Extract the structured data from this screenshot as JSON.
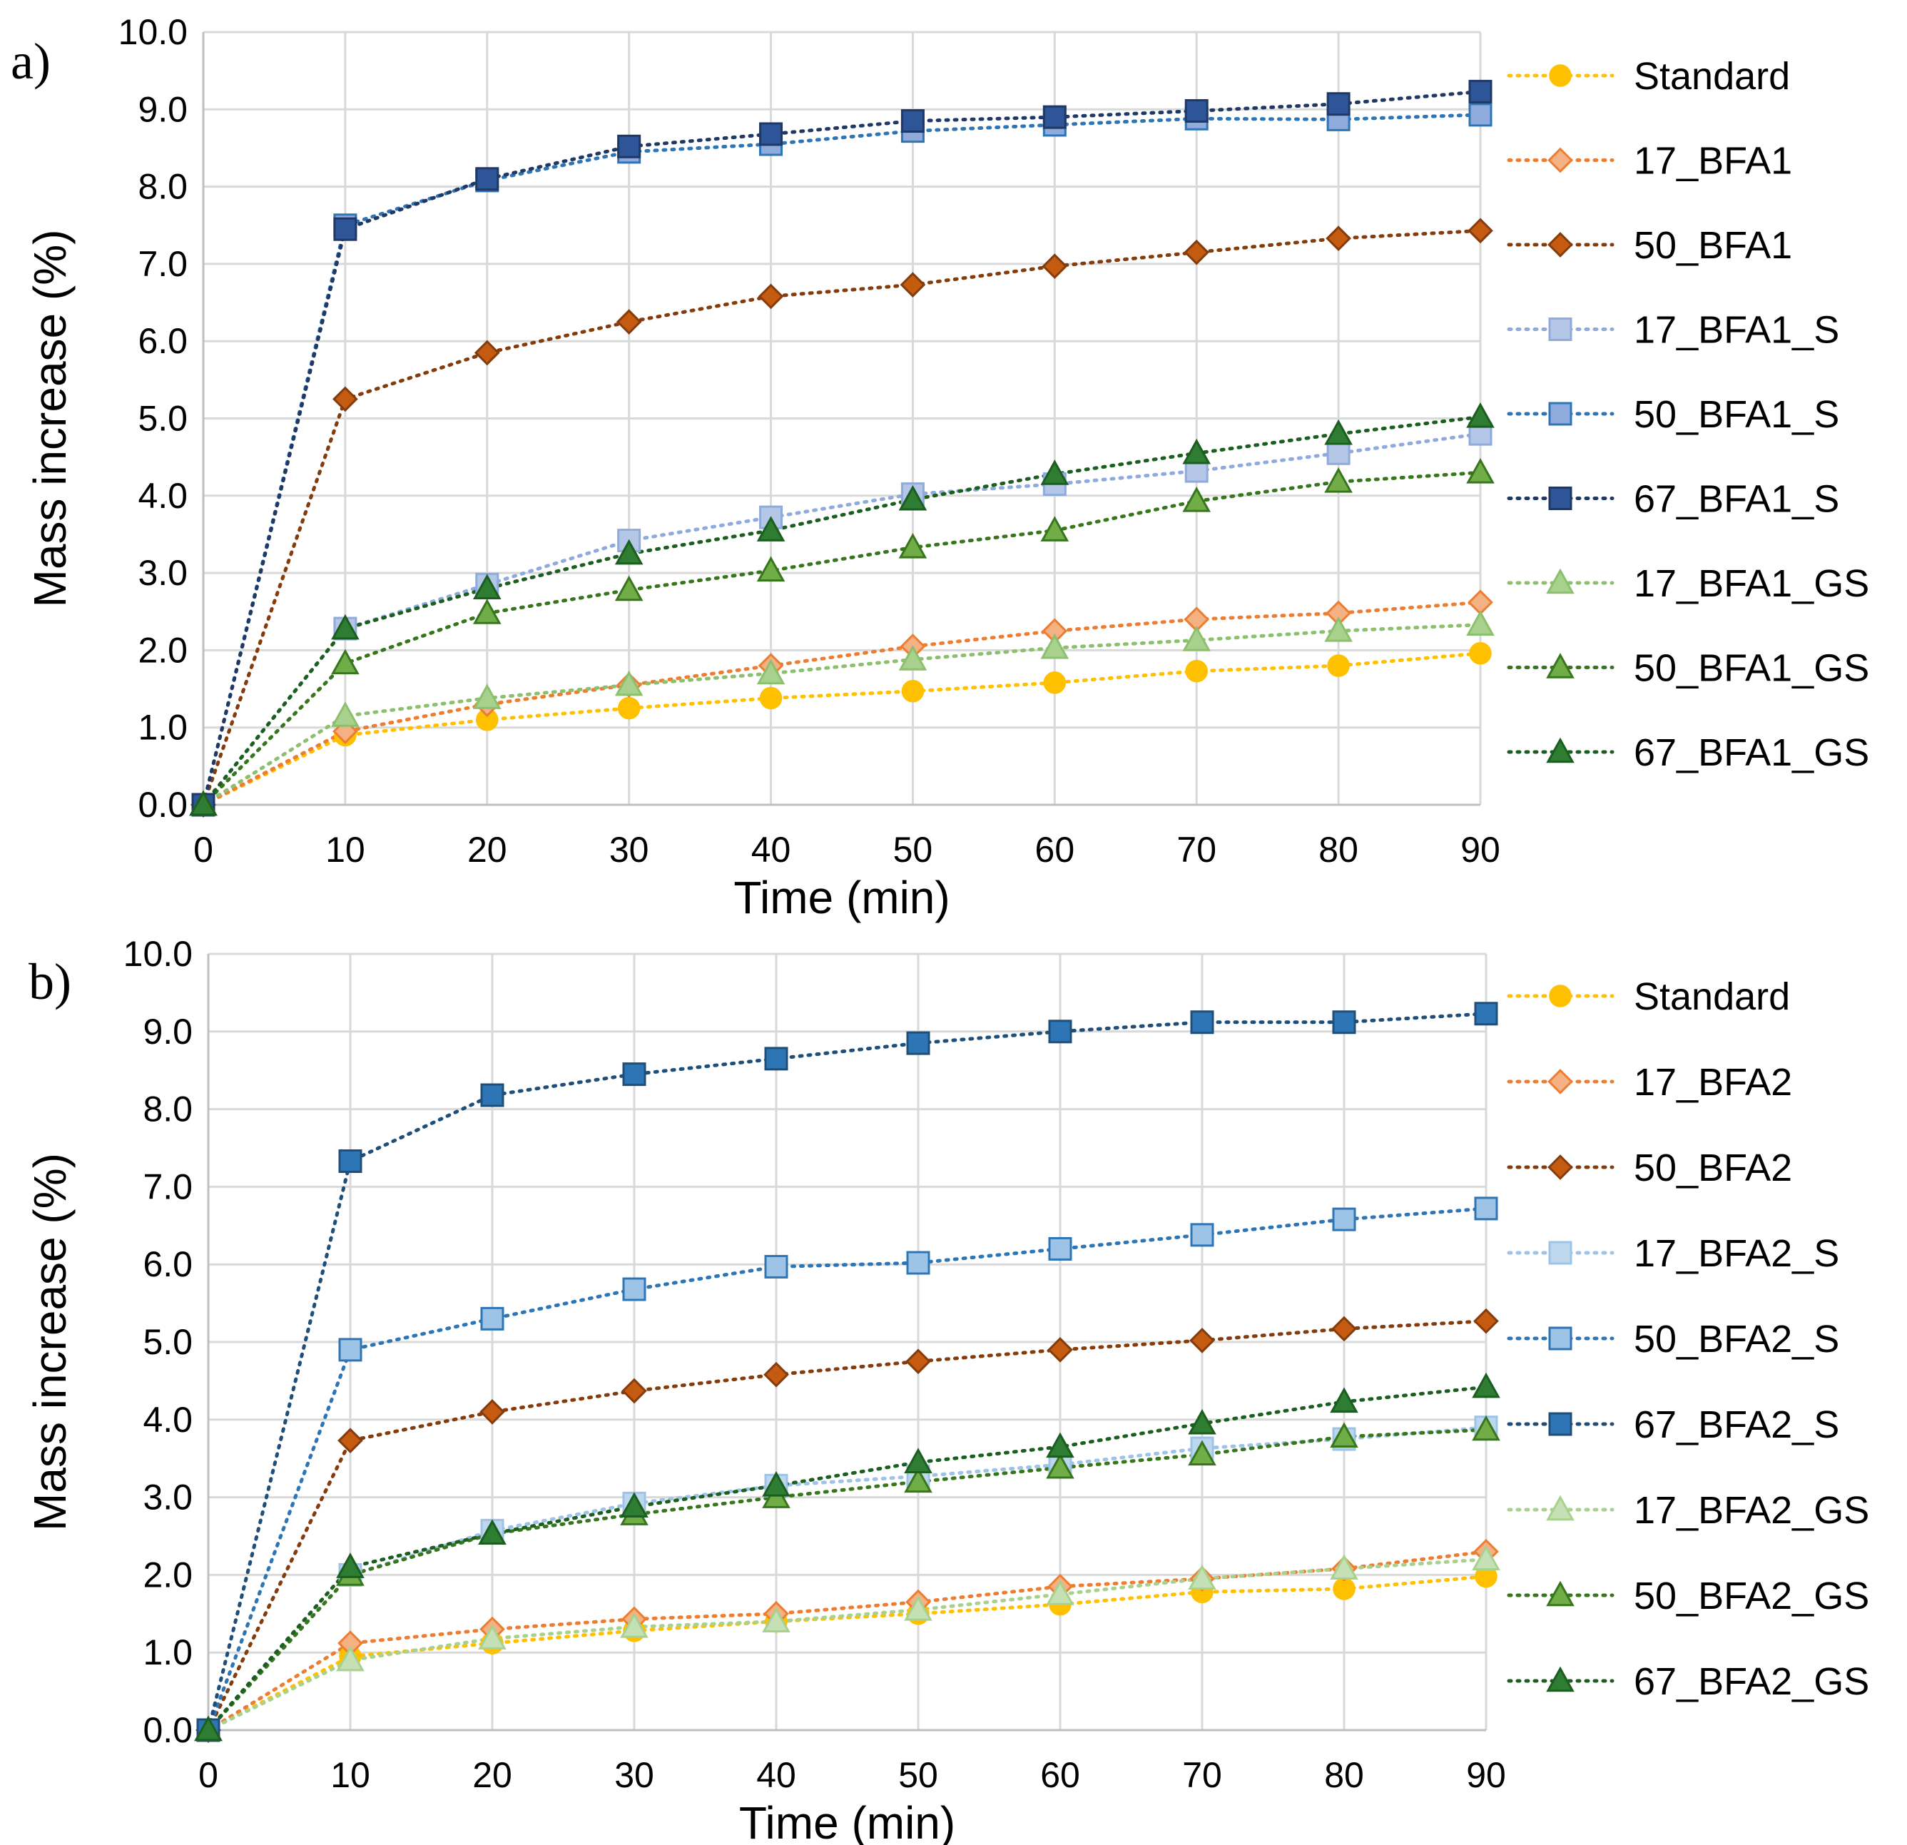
{
  "chart_data": [
    {
      "type": "line",
      "panel": "a)",
      "xlabel": "Time (min)",
      "ylabel": "Mass increase (%)",
      "x": [
        0,
        10,
        20,
        30,
        40,
        50,
        60,
        70,
        80,
        90
      ],
      "xlim": [
        0,
        90
      ],
      "ylim": [
        0,
        10
      ],
      "x_tick_labels": [
        "0",
        "10",
        "20",
        "30",
        "40",
        "50",
        "60",
        "70",
        "80",
        "90"
      ],
      "y_tick_labels": [
        "0.0",
        "1.0",
        "2.0",
        "3.0",
        "4.0",
        "5.0",
        "6.0",
        "7.0",
        "8.0",
        "9.0",
        "10.0"
      ],
      "grid": true,
      "legend_position": "right",
      "series": [
        {
          "name": "Standard",
          "marker": "circle",
          "fill": "#FFC000",
          "stroke": "#FFC000",
          "line_color": "#FFC000",
          "values": [
            0,
            0.9,
            1.1,
            1.25,
            1.38,
            1.47,
            1.58,
            1.73,
            1.8,
            1.96
          ]
        },
        {
          "name": "17_BFA1",
          "marker": "diamond",
          "fill": "#F4B183",
          "stroke": "#ED7D31",
          "line_color": "#ED7D31",
          "values": [
            0,
            0.95,
            1.3,
            1.55,
            1.8,
            2.05,
            2.25,
            2.4,
            2.48,
            2.62
          ]
        },
        {
          "name": "50_BFA1",
          "marker": "diamond",
          "fill": "#C55A11",
          "stroke": "#843C0C",
          "line_color": "#843C0C",
          "values": [
            0,
            5.25,
            5.85,
            6.25,
            6.58,
            6.73,
            6.97,
            7.15,
            7.33,
            7.43
          ]
        },
        {
          "name": "17_BFA1_S",
          "marker": "square",
          "fill": "#B4C7E7",
          "stroke": "#8FAADC",
          "line_color": "#8FAADC",
          "values": [
            0,
            2.28,
            2.85,
            3.42,
            3.72,
            4.02,
            4.15,
            4.32,
            4.55,
            4.8
          ]
        },
        {
          "name": "50_BFA1_S",
          "marker": "square",
          "fill": "#8FAADC",
          "stroke": "#2E75B6",
          "line_color": "#2E75B6",
          "values": [
            0,
            7.5,
            8.08,
            8.45,
            8.55,
            8.72,
            8.8,
            8.88,
            8.87,
            8.93
          ]
        },
        {
          "name": "67_BFA1_S",
          "marker": "square",
          "fill": "#2E5597",
          "stroke": "#1F3864",
          "line_color": "#1F3864",
          "values": [
            0,
            7.45,
            8.1,
            8.52,
            8.68,
            8.85,
            8.9,
            8.98,
            9.07,
            9.23
          ]
        },
        {
          "name": "17_BFA1_GS",
          "marker": "triangle",
          "fill": "#A9D18E",
          "stroke": "#8CC06E",
          "line_color": "#8CC06E",
          "values": [
            0,
            1.15,
            1.38,
            1.55,
            1.7,
            1.88,
            2.03,
            2.13,
            2.25,
            2.33
          ]
        },
        {
          "name": "50_BFA1_GS",
          "marker": "triangle",
          "fill": "#70AD47",
          "stroke": "#38761D",
          "line_color": "#38761D",
          "values": [
            0,
            1.83,
            2.48,
            2.78,
            3.03,
            3.33,
            3.55,
            3.93,
            4.18,
            4.3
          ]
        },
        {
          "name": "67_BFA1_GS",
          "marker": "triangle",
          "fill": "#2E7D32",
          "stroke": "#1B5E20",
          "line_color": "#1B5E20",
          "values": [
            0,
            2.28,
            2.8,
            3.25,
            3.55,
            3.95,
            4.28,
            4.55,
            4.8,
            5.02
          ]
        }
      ]
    },
    {
      "type": "line",
      "panel": "b)",
      "xlabel": "Time (min)",
      "ylabel": "Mass increase (%)",
      "x": [
        0,
        10,
        20,
        30,
        40,
        50,
        60,
        70,
        80,
        90
      ],
      "xlim": [
        0,
        90
      ],
      "ylim": [
        0,
        10
      ],
      "x_tick_labels": [
        "0",
        "10",
        "20",
        "30",
        "40",
        "50",
        "60",
        "70",
        "80",
        "90"
      ],
      "y_tick_labels": [
        "0.0",
        "1.0",
        "2.0",
        "3.0",
        "4.0",
        "5.0",
        "6.0",
        "7.0",
        "8.0",
        "9.0",
        "10.0"
      ],
      "grid": true,
      "legend_position": "right",
      "series": [
        {
          "name": "Standard",
          "marker": "circle",
          "fill": "#FFC000",
          "stroke": "#FFC000",
          "line_color": "#FFC000",
          "values": [
            0,
            0.95,
            1.12,
            1.28,
            1.4,
            1.5,
            1.62,
            1.78,
            1.82,
            1.98
          ]
        },
        {
          "name": "17_BFA2",
          "marker": "diamond",
          "fill": "#F4B183",
          "stroke": "#ED7D31",
          "line_color": "#ED7D31",
          "values": [
            0,
            1.12,
            1.3,
            1.43,
            1.5,
            1.65,
            1.85,
            1.95,
            2.08,
            2.3
          ]
        },
        {
          "name": "50_BFA2",
          "marker": "diamond",
          "fill": "#C55A11",
          "stroke": "#843C0C",
          "line_color": "#843C0C",
          "values": [
            0,
            3.73,
            4.1,
            4.37,
            4.58,
            4.75,
            4.9,
            5.02,
            5.17,
            5.27
          ]
        },
        {
          "name": "17_BFA2_S",
          "marker": "square",
          "fill": "#BDD7EE",
          "stroke": "#9DC3E6",
          "line_color": "#9DC3E6",
          "values": [
            0,
            2.0,
            2.57,
            2.92,
            3.15,
            3.27,
            3.42,
            3.63,
            3.75,
            3.9
          ]
        },
        {
          "name": "50_BFA2_S",
          "marker": "square",
          "fill": "#9DC3E6",
          "stroke": "#2E75B6",
          "line_color": "#2E75B6",
          "values": [
            0,
            4.9,
            5.3,
            5.68,
            5.97,
            6.02,
            6.2,
            6.38,
            6.58,
            6.72
          ]
        },
        {
          "name": "67_BFA2_S",
          "marker": "square",
          "fill": "#2E75B6",
          "stroke": "#1F4E79",
          "line_color": "#1F4E79",
          "values": [
            0,
            7.33,
            8.18,
            8.45,
            8.65,
            8.85,
            9.0,
            9.12,
            9.12,
            9.23
          ]
        },
        {
          "name": "17_BFA2_GS",
          "marker": "triangle",
          "fill": "#C5E0B4",
          "stroke": "#A9D18E",
          "line_color": "#A9D18E",
          "values": [
            0,
            0.9,
            1.18,
            1.33,
            1.4,
            1.55,
            1.75,
            1.95,
            2.08,
            2.2
          ]
        },
        {
          "name": "50_BFA2_GS",
          "marker": "triangle",
          "fill": "#70AD47",
          "stroke": "#38761D",
          "line_color": "#38761D",
          "values": [
            0,
            2.0,
            2.53,
            2.78,
            3.0,
            3.2,
            3.38,
            3.55,
            3.78,
            3.87
          ]
        },
        {
          "name": "67_BFA2_GS",
          "marker": "triangle",
          "fill": "#2E7D32",
          "stroke": "#1B5E20",
          "line_color": "#1B5E20",
          "values": [
            0,
            2.1,
            2.53,
            2.88,
            3.15,
            3.45,
            3.65,
            3.95,
            4.23,
            4.42
          ]
        }
      ]
    }
  ]
}
